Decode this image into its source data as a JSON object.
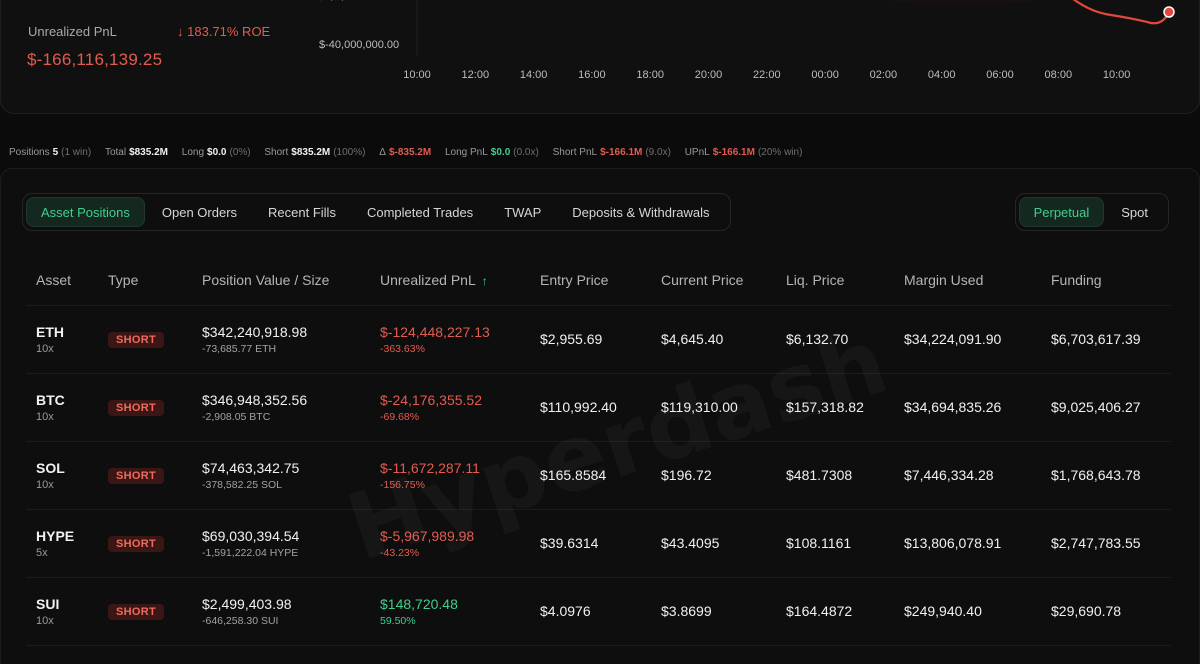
{
  "summary": {
    "upnl_label": "Unrealized PnL",
    "roe": "183.71% ROE",
    "upnl_value": "$-166,116,139.25"
  },
  "chart": {
    "y_ticks": [
      "$-40,000,000.00"
    ],
    "x_ticks": [
      "10:00",
      "12:00",
      "14:00",
      "16:00",
      "18:00",
      "20:00",
      "22:00",
      "00:00",
      "02:00",
      "04:00",
      "06:00",
      "08:00",
      "10:00"
    ],
    "line_color": "#e5463c"
  },
  "stats": {
    "positions_label": "Positions",
    "positions_value": "5",
    "positions_note": "(1 win)",
    "total_label": "Total",
    "total_value": "$835.2M",
    "long_label": "Long",
    "long_value": "$0.0",
    "long_note": "(0%)",
    "short_label": "Short",
    "short_value": "$835.2M",
    "short_note": "(100%)",
    "delta_label": "Δ",
    "delta_value": "$-835.2M",
    "longpnl_label": "Long PnL",
    "longpnl_value": "$0.0",
    "longpnl_note": "(0.0x)",
    "shortpnl_label": "Short PnL",
    "shortpnl_value": "$-166.1M",
    "shortpnl_note": "(9.0x)",
    "upnl_label": "UPnL",
    "upnl_value": "$-166.1M",
    "upnl_note": "(20% win)"
  },
  "tabs": [
    "Asset Positions",
    "Open Orders",
    "Recent Fills",
    "Completed Trades",
    "TWAP",
    "Deposits & Withdrawals"
  ],
  "market_tabs": [
    "Perpetual",
    "Spot"
  ],
  "table": {
    "headers": [
      "Asset",
      "Type",
      "Position Value / Size",
      "Unrealized PnL",
      "Entry Price",
      "Current Price",
      "Liq. Price",
      "Margin Used",
      "Funding"
    ],
    "rows": [
      {
        "asset": "ETH",
        "lev": "10x",
        "type": "SHORT",
        "value": "$342,240,918.98",
        "size": "-73,685.77 ETH",
        "pnl": "$-124,448,227.13",
        "pnl_pct": "-363.63%",
        "entry": "$2,955.69",
        "current": "$4,645.40",
        "liq": "$6,132.70",
        "margin": "$34,224,091.90",
        "funding": "$6,703,617.39"
      },
      {
        "asset": "BTC",
        "lev": "10x",
        "type": "SHORT",
        "value": "$346,948,352.56",
        "size": "-2,908.05 BTC",
        "pnl": "$-24,176,355.52",
        "pnl_pct": "-69.68%",
        "entry": "$110,992.40",
        "current": "$119,310.00",
        "liq": "$157,318.82",
        "margin": "$34,694,835.26",
        "funding": "$9,025,406.27"
      },
      {
        "asset": "SOL",
        "lev": "10x",
        "type": "SHORT",
        "value": "$74,463,342.75",
        "size": "-378,582.25 SOL",
        "pnl": "$-11,672,287.11",
        "pnl_pct": "-156.75%",
        "entry": "$165.8584",
        "current": "$196.72",
        "liq": "$481.7308",
        "margin": "$7,446,334.28",
        "funding": "$1,768,643.78"
      },
      {
        "asset": "HYPE",
        "lev": "5x",
        "type": "SHORT",
        "value": "$69,030,394.54",
        "size": "-1,591,222.04 HYPE",
        "pnl": "$-5,967,989.98",
        "pnl_pct": "-43.23%",
        "entry": "$39.6314",
        "current": "$43.4095",
        "liq": "$108.1161",
        "margin": "$13,806,078.91",
        "funding": "$2,747,783.55"
      },
      {
        "asset": "SUI",
        "lev": "10x",
        "type": "SHORT",
        "value": "$2,499,403.98",
        "size": "-646,258.30 SUI",
        "pnl": "$148,720.48",
        "pnl_pct": "59.50%",
        "entry": "$4.0976",
        "current": "$3.8699",
        "liq": "$164.4872",
        "margin": "$249,940.40",
        "funding": "$29,690.78"
      }
    ]
  },
  "watermark": "Hyperdash"
}
